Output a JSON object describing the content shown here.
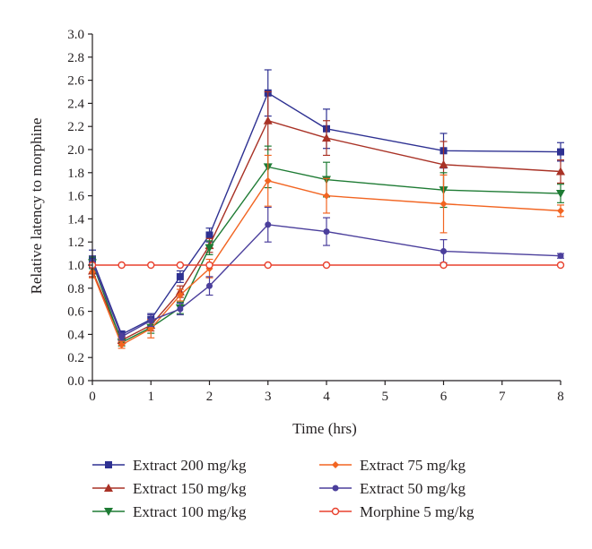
{
  "chart_data": {
    "type": "line",
    "title": "",
    "xlabel": "Time (hrs)",
    "ylabel": "Relative latency to morphine",
    "xlim": [
      0,
      8
    ],
    "ylim": [
      0,
      3.0
    ],
    "xticks": [
      "0",
      "1",
      "2",
      "3",
      "4",
      "5",
      "6",
      "7",
      "8"
    ],
    "yticks": [
      "0.0",
      "0.2",
      "0.4",
      "0.6",
      "0.8",
      "1.0",
      "1.2",
      "1.4",
      "1.6",
      "1.8",
      "2.0",
      "2.2",
      "2.4",
      "2.6",
      "2.8",
      "3.0"
    ],
    "grid": false,
    "legend_position": "bottom",
    "x": [
      0,
      0.5,
      1,
      1.5,
      2,
      3,
      4,
      6,
      8
    ],
    "series": [
      {
        "name": "Extract 200 mg/kg",
        "color": "#2e3192",
        "marker": "square",
        "values": [
          1.05,
          0.4,
          0.53,
          0.9,
          1.26,
          2.49,
          2.18,
          1.99,
          1.98
        ],
        "errors": [
          0.08,
          0.03,
          0.05,
          0.05,
          0.06,
          0.2,
          0.17,
          0.15,
          0.08
        ]
      },
      {
        "name": "Extract 150 mg/kg",
        "color": "#a93226",
        "marker": "triangle-up",
        "values": [
          0.95,
          0.35,
          0.48,
          0.77,
          1.17,
          2.25,
          2.1,
          1.87,
          1.81
        ],
        "errors": [
          0.05,
          0.03,
          0.05,
          0.05,
          0.06,
          0.25,
          0.15,
          0.2,
          0.1
        ]
      },
      {
        "name": "Extract 100 mg/kg",
        "color": "#1e7b34",
        "marker": "triangle-down",
        "values": [
          1.02,
          0.33,
          0.46,
          0.63,
          1.15,
          1.85,
          1.74,
          1.65,
          1.62
        ],
        "errors": [
          0.05,
          0.03,
          0.05,
          0.05,
          0.06,
          0.18,
          0.15,
          0.15,
          0.08
        ]
      },
      {
        "name": "Extract 75 mg/kg",
        "color": "#f26522",
        "marker": "diamond",
        "values": [
          0.94,
          0.31,
          0.45,
          0.74,
          0.97,
          1.73,
          1.6,
          1.53,
          1.47
        ],
        "errors": [
          0.05,
          0.03,
          0.08,
          0.05,
          0.08,
          0.22,
          0.15,
          0.25,
          0.05
        ]
      },
      {
        "name": "Extract 50 mg/kg",
        "color": "#4b3f9c",
        "marker": "circle",
        "values": [
          1.03,
          0.38,
          0.52,
          0.62,
          0.82,
          1.35,
          1.29,
          1.12,
          1.08
        ],
        "errors": [
          0.05,
          0.03,
          0.05,
          0.05,
          0.08,
          0.15,
          0.12,
          0.1,
          0.02
        ]
      },
      {
        "name": "Morphine 5 mg/kg",
        "color": "#e8412e",
        "marker": "open-circle",
        "values": [
          1.0,
          1.0,
          1.0,
          1.0,
          1.0,
          1.0,
          1.0,
          1.0,
          1.0
        ],
        "errors": [
          0,
          0,
          0,
          0,
          0,
          0,
          0,
          0,
          0
        ]
      }
    ]
  }
}
